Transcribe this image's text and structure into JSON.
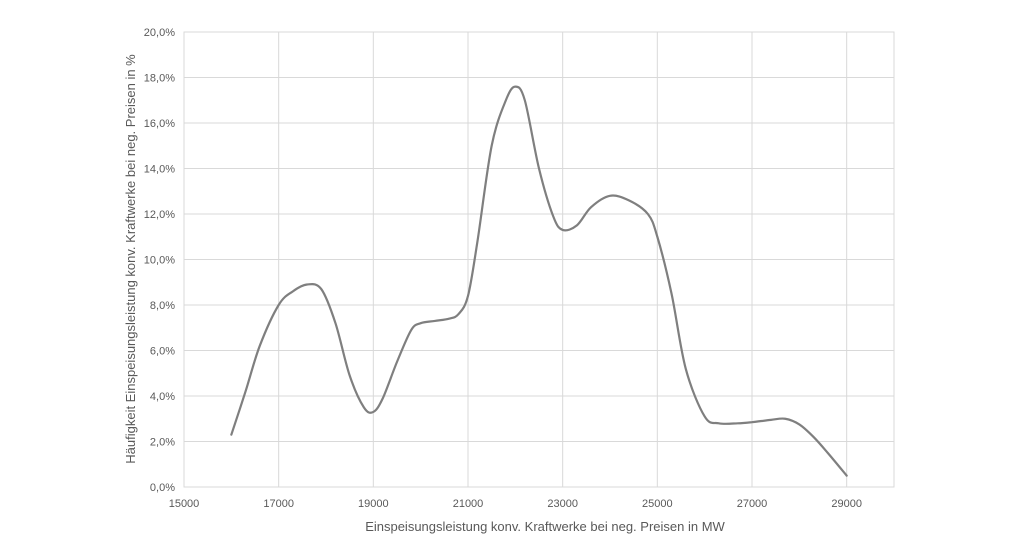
{
  "chart_data": {
    "type": "line",
    "title": "",
    "xlabel": "Einspeisungsleistung konv. Kraftwerke bei neg. Preisen in MW",
    "ylabel": "Häufigkeit Einspeisungsleistung konv. Kraftwerke bei neg. Preisen in %",
    "xlim": [
      15000,
      30000
    ],
    "ylim": [
      0,
      20
    ],
    "x_ticks": [
      "15000",
      "17000",
      "19000",
      "21000",
      "23000",
      "25000",
      "27000",
      "29000"
    ],
    "x_tick_values": [
      15000,
      17000,
      19000,
      21000,
      23000,
      25000,
      27000,
      29000
    ],
    "y_ticks": [
      "0,0%",
      "2,0%",
      "4,0%",
      "6,0%",
      "8,0%",
      "10,0%",
      "12,0%",
      "14,0%",
      "16,0%",
      "18,0%",
      "20,0%"
    ],
    "y_tick_values": [
      0,
      2,
      4,
      6,
      8,
      10,
      12,
      14,
      16,
      18,
      20
    ],
    "grid": true,
    "line_color": "#7f7f7f",
    "grid_color": "#d9d9d9",
    "series": [
      {
        "x": [
          16000,
          16300,
          16600,
          17000,
          17300,
          17600,
          17900,
          18200,
          18500,
          18800,
          19000,
          19200,
          19500,
          19800,
          20000,
          20300,
          20600,
          20800,
          21000,
          21200,
          21500,
          21800,
          22000,
          22200,
          22500,
          22800,
          23000,
          23300,
          23600,
          24000,
          24400,
          24800,
          25000,
          25300,
          25600,
          26000,
          26300,
          26700,
          27000,
          27400,
          27700,
          28000,
          28300,
          28600,
          29000
        ],
        "y": [
          2.3,
          4.2,
          6.2,
          8.0,
          8.6,
          8.9,
          8.7,
          7.2,
          4.9,
          3.5,
          3.3,
          3.9,
          5.5,
          6.9,
          7.2,
          7.3,
          7.4,
          7.6,
          8.4,
          10.8,
          15.0,
          17.0,
          17.6,
          17.0,
          14.0,
          11.9,
          11.3,
          11.5,
          12.3,
          12.8,
          12.6,
          12.0,
          11.0,
          8.5,
          5.2,
          3.1,
          2.8,
          2.8,
          2.85,
          2.95,
          3.0,
          2.75,
          2.2,
          1.5,
          0.5
        ]
      }
    ]
  }
}
